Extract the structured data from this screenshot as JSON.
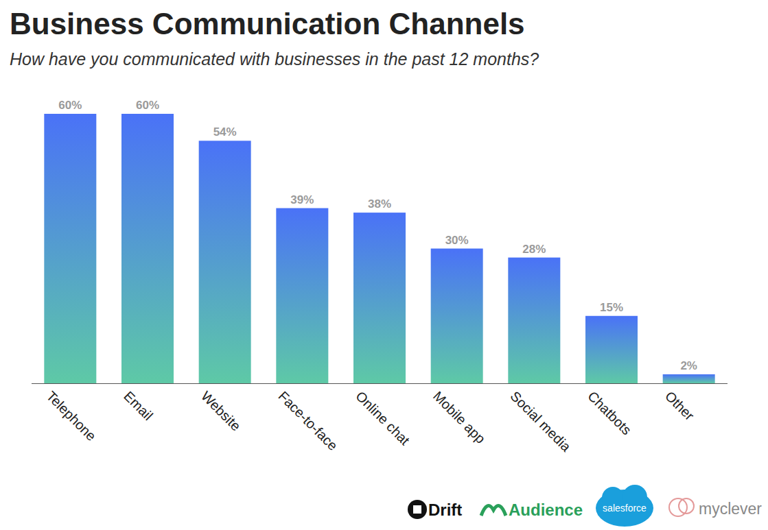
{
  "chart_data": {
    "type": "bar",
    "title": "Business Communication Channels",
    "subtitle": "How have you communicated with businesses in the past 12 months?",
    "categories": [
      "Telephone",
      "Email",
      "Website",
      "Face-to-face",
      "Online chat",
      "Mobile app",
      "Social media",
      "Chatbots",
      "Other"
    ],
    "values": [
      60,
      60,
      54,
      39,
      38,
      30,
      28,
      15,
      2
    ],
    "value_labels": [
      "60%",
      "60%",
      "54%",
      "39%",
      "38%",
      "30%",
      "28%",
      "15%",
      "2%"
    ],
    "color": "#4a72f7",
    "ylim": [
      0,
      60
    ],
    "grid": false,
    "data_labels": true,
    "tick_labels": "x",
    "annotations": [
      "Drift",
      "Audience",
      "salesforce",
      "myclever"
    ]
  }
}
